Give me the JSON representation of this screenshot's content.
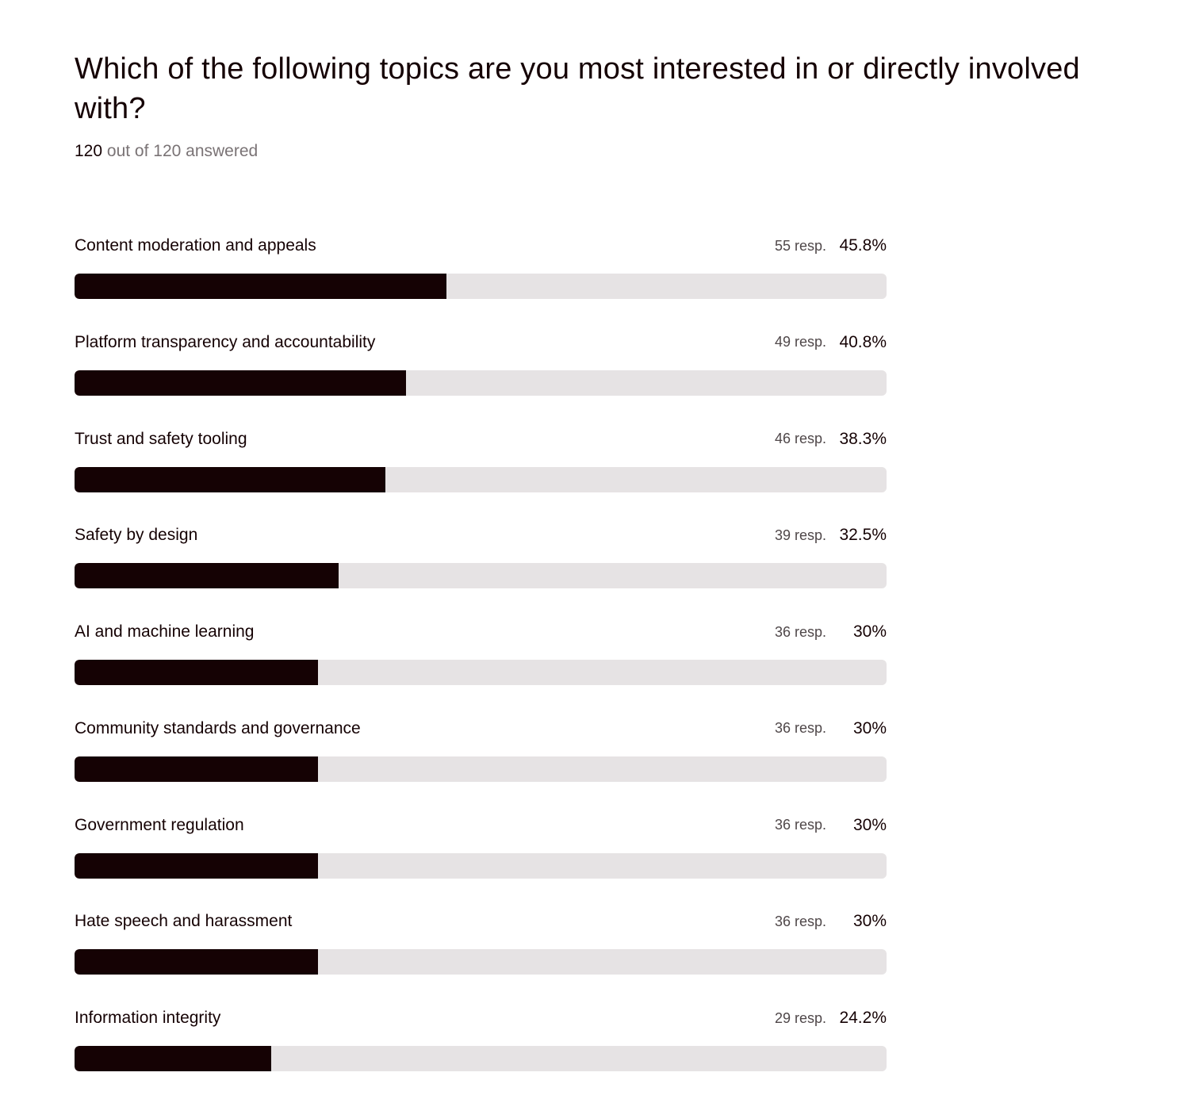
{
  "question": {
    "title": "Which of the following topics are you most interested in or directly involved with?",
    "answered_count": "120",
    "answered_rest": "out of 120 answered"
  },
  "colors": {
    "bar_fill": "#150204",
    "bar_track": "#e6e3e4",
    "text_primary": "#150204",
    "text_muted": "#7a7375"
  },
  "results": [
    {
      "label": "Content moderation and appeals",
      "responses": "55 resp.",
      "percent": "45.8%",
      "fraction": 0.458
    },
    {
      "label": "Platform transparency and accountability",
      "responses": "49 resp.",
      "percent": "40.8%",
      "fraction": 0.408
    },
    {
      "label": "Trust and safety tooling",
      "responses": "46 resp.",
      "percent": "38.3%",
      "fraction": 0.383
    },
    {
      "label": "Safety by design",
      "responses": "39 resp.",
      "percent": "32.5%",
      "fraction": 0.325
    },
    {
      "label": "AI and machine learning",
      "responses": "36 resp.",
      "percent": "30%",
      "fraction": 0.3
    },
    {
      "label": "Community standards and governance",
      "responses": "36 resp.",
      "percent": "30%",
      "fraction": 0.3
    },
    {
      "label": "Government regulation",
      "responses": "36 resp.",
      "percent": "30%",
      "fraction": 0.3
    },
    {
      "label": "Hate speech and harassment",
      "responses": "36 resp.",
      "percent": "30%",
      "fraction": 0.3
    },
    {
      "label": "Information integrity",
      "responses": "29 resp.",
      "percent": "24.2%",
      "fraction": 0.242
    }
  ]
}
